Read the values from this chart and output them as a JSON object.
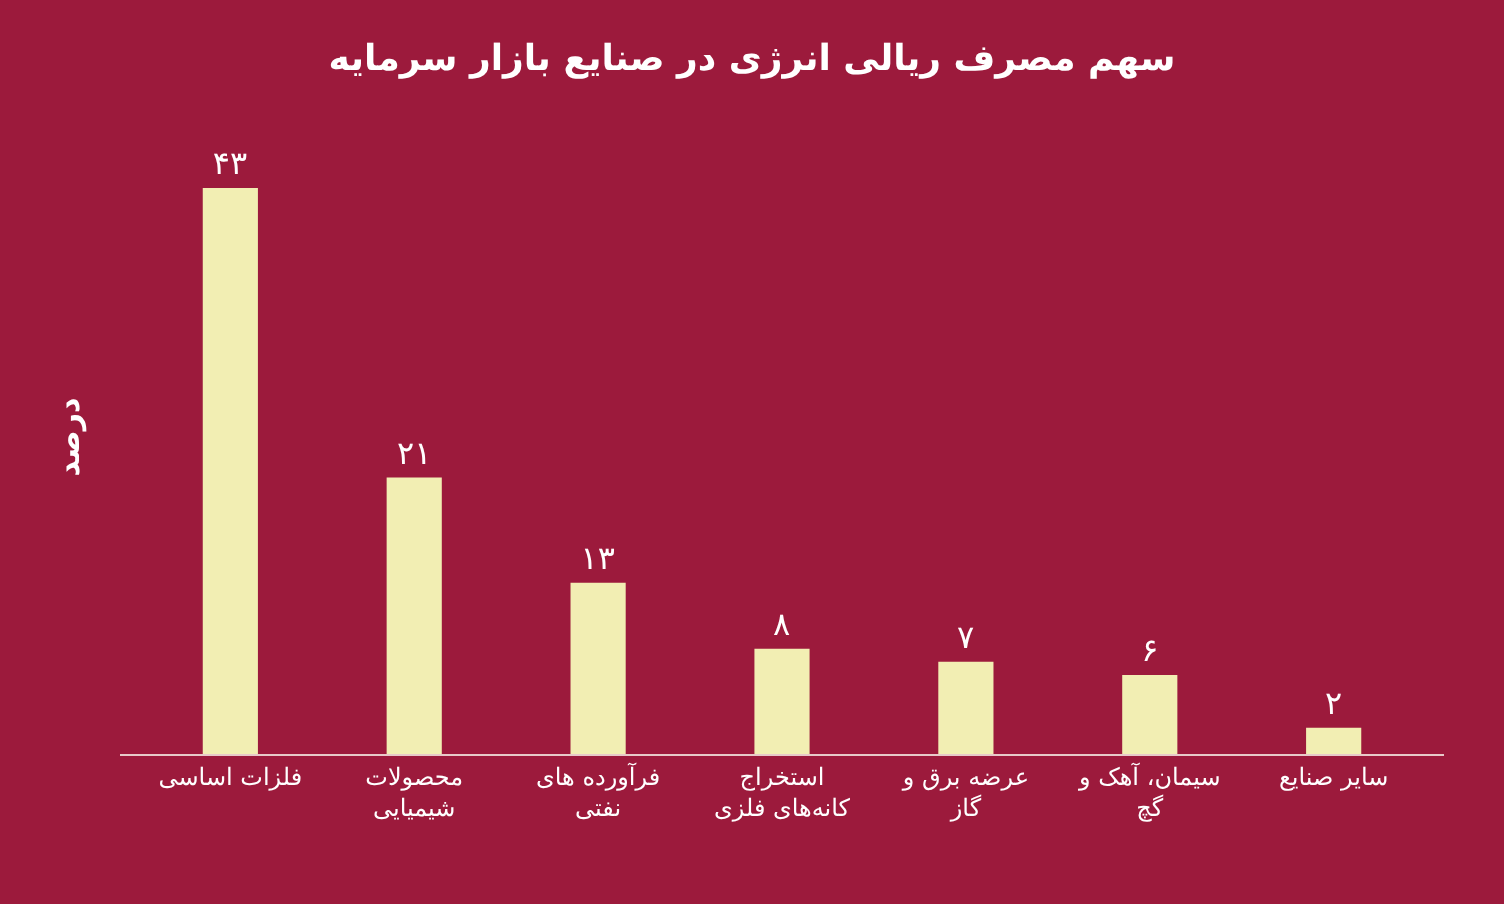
{
  "chart_data": {
    "type": "bar",
    "title": "سهم مصرف ریالی انرژی در صنایع بازار سرمایه",
    "ylabel": "درصد",
    "categories": [
      "فلزات اساسی",
      "محصولات شیمیایی",
      "فرآورده های نفتی",
      "استخراج کانه‌های فلزی",
      "عرضه برق و گاز",
      "سیمان، آهک و گچ",
      "سایر صنایع"
    ],
    "values": [
      43,
      21,
      13,
      8,
      7,
      6,
      2
    ],
    "value_labels": [
      "۴۳",
      "۲۱",
      "۱۳",
      "۸",
      "۷",
      "۶",
      "۲"
    ],
    "color": "#f2eeb3",
    "grid": false
  }
}
